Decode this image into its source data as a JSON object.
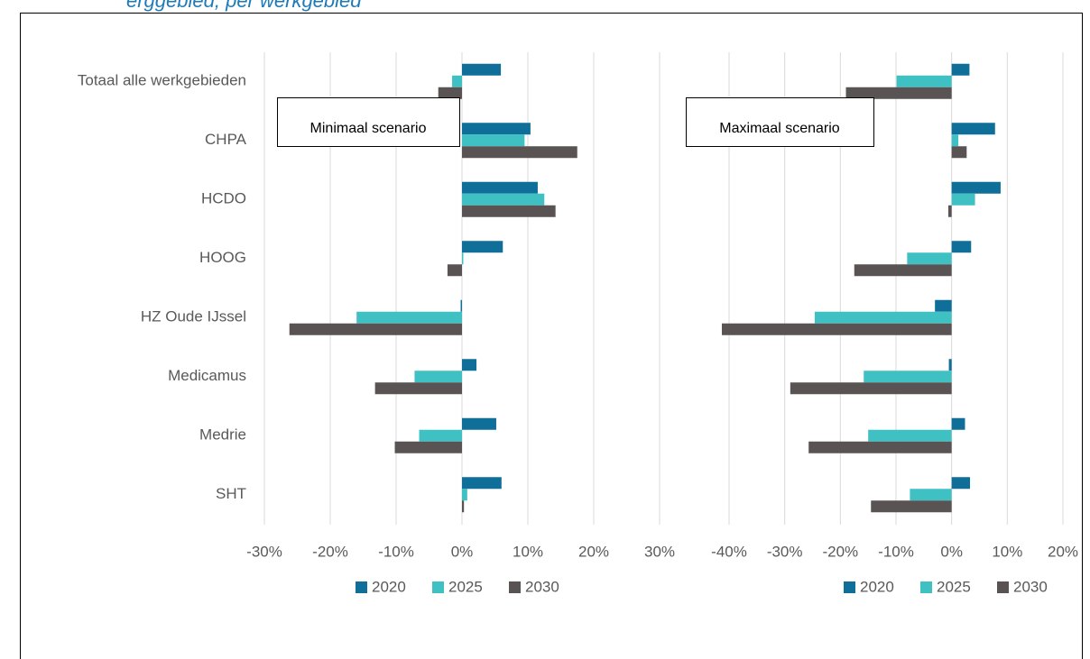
{
  "title": "erggebied, per werkgebied",
  "chart_data": [
    {
      "type": "barh",
      "annotation": "Minimaal scenario",
      "categories": [
        "Totaal alle werkgebieden",
        "CHPA",
        "HCDO",
        "HOOG",
        "HZ Oude IJssel",
        "Medicamus",
        "Medrie",
        "SHT"
      ],
      "series": [
        {
          "name": "2020",
          "color": "#0f6f98",
          "values": [
            5.9,
            10.4,
            11.5,
            6.2,
            -0.2,
            2.2,
            5.2,
            6.0
          ]
        },
        {
          "name": "2025",
          "color": "#3fc1c4",
          "values": [
            -1.5,
            9.5,
            12.5,
            0.2,
            -16.0,
            -7.2,
            -6.5,
            0.8
          ]
        },
        {
          "name": "2030",
          "color": "#595453",
          "values": [
            -3.6,
            17.5,
            14.2,
            -2.2,
            -26.2,
            -13.2,
            -10.2,
            0.3
          ]
        }
      ],
      "xlim": [
        -30,
        30
      ],
      "xticks": [
        {
          "value": -30,
          "label": "-30%"
        },
        {
          "value": -20,
          "label": "-20%"
        },
        {
          "value": -10,
          "label": "-10%"
        },
        {
          "value": 0,
          "label": "0%"
        },
        {
          "value": 10,
          "label": "10%"
        },
        {
          "value": 20,
          "label": "20%"
        },
        {
          "value": 30,
          "label": "30%"
        }
      ],
      "grid": true,
      "legend": "bottom"
    },
    {
      "type": "barh",
      "annotation": "Maximaal scenario",
      "series": [
        {
          "name": "2020",
          "color": "#0f6f98",
          "values": [
            3.2,
            7.8,
            8.8,
            3.5,
            -3.0,
            -0.5,
            2.4,
            3.3
          ]
        },
        {
          "name": "2025",
          "color": "#3fc1c4",
          "values": [
            -9.9,
            1.2,
            4.2,
            -8.0,
            -24.6,
            -15.8,
            -15.0,
            -7.5
          ]
        },
        {
          "name": "2030",
          "color": "#595453",
          "values": [
            -19.0,
            2.7,
            -0.6,
            -17.5,
            -41.3,
            -29.0,
            -25.7,
            -14.5
          ]
        }
      ],
      "xlim": [
        -40,
        20
      ],
      "xticks": [
        {
          "value": -40,
          "label": "-40%"
        },
        {
          "value": -30,
          "label": "-30%"
        },
        {
          "value": -20,
          "label": "-20%"
        },
        {
          "value": -10,
          "label": "-10%"
        },
        {
          "value": 0,
          "label": "0%"
        },
        {
          "value": 10,
          "label": "10%"
        },
        {
          "value": 20,
          "label": "20%"
        }
      ],
      "grid": true,
      "legend": "bottom"
    }
  ]
}
